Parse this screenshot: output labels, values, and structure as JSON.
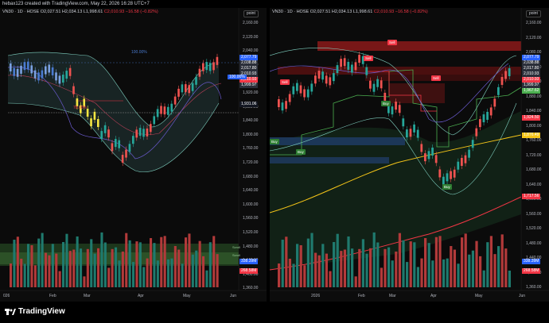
{
  "header": {
    "caption": "hebax123 created with TradingView.com, May 22, 2026 16:28 UTC+7"
  },
  "left_chart": {
    "symbol": "VN30 · 1D · HOSE",
    "ohlc": {
      "o": "O2,027.51",
      "h": "H2,034.13",
      "l": "L1,998.61",
      "c": "C2,010.93",
      "chg": "−16.58 (−0.82%)"
    },
    "scale_button": "point",
    "price_ticks": [
      "2,160.00",
      "2,120.00",
      "2,040.00",
      "2,000.00",
      "1,960.00",
      "1,920.00",
      "1,880.00",
      "1,840.00",
      "1,800.00",
      "1,760.00",
      "1,720.00",
      "1,680.00",
      "1,640.00",
      "1,600.00",
      "1,560.00",
      "1,520.00",
      "1,480.00",
      "1,440.00",
      "1,400.00",
      "1,360.00"
    ],
    "price_tags": [
      "2,077.79",
      "2,038.88",
      "2,017.80",
      "2,010.93",
      "2,010.93",
      "1,999.97",
      "1,931.06",
      "338.39M",
      "268.58M"
    ],
    "pct_label_top": "100.00%",
    "pct_label_right": "100.00%",
    "pct_label_mid": "78.00%",
    "time_labels": [
      "026",
      "Feb",
      "Mar",
      "Apr",
      "May",
      "Jun"
    ],
    "volume_labels": [
      "Scroll",
      "Scroll"
    ]
  },
  "right_chart": {
    "symbol": "VN30 · 1D · HOSE",
    "ohlc": {
      "o": "O2,027.51",
      "h": "H2,034.13",
      "l": "L1,998.61",
      "c": "C2,010.93",
      "chg": "−16.58 (−0.82%)"
    },
    "scale_button": "point",
    "price_ticks": [
      "2,160.00",
      "2,120.00",
      "2,080.00",
      "1,960.00",
      "1,940.00",
      "1,880.00",
      "1,840.00",
      "1,800.00",
      "1,760.00",
      "1,720.00",
      "1,680.00",
      "1,640.00",
      "1,600.00",
      "1,560.00",
      "1,520.00",
      "1,480.00",
      "1,440.00",
      "1,400.00",
      "1,360.00"
    ],
    "price_tags": [
      "2,077.79",
      "2,038.88",
      "2,017.80",
      "2,010.93",
      "2,010.93",
      "1,999.97",
      "1,967.62",
      "1,924.50",
      "1,876.49",
      "1,717.56",
      "338.39M",
      "268.58M"
    ],
    "signals": {
      "sell": [
        "Sell",
        "Sell",
        "Sell",
        "Sell"
      ],
      "buy": [
        "Buy",
        "Buy",
        "Buy",
        "Buy"
      ]
    },
    "time_labels": [
      "2026",
      "Feb",
      "Mar",
      "Apr",
      "May",
      "Jun"
    ]
  },
  "footer": {
    "brand": "TradingView"
  }
}
